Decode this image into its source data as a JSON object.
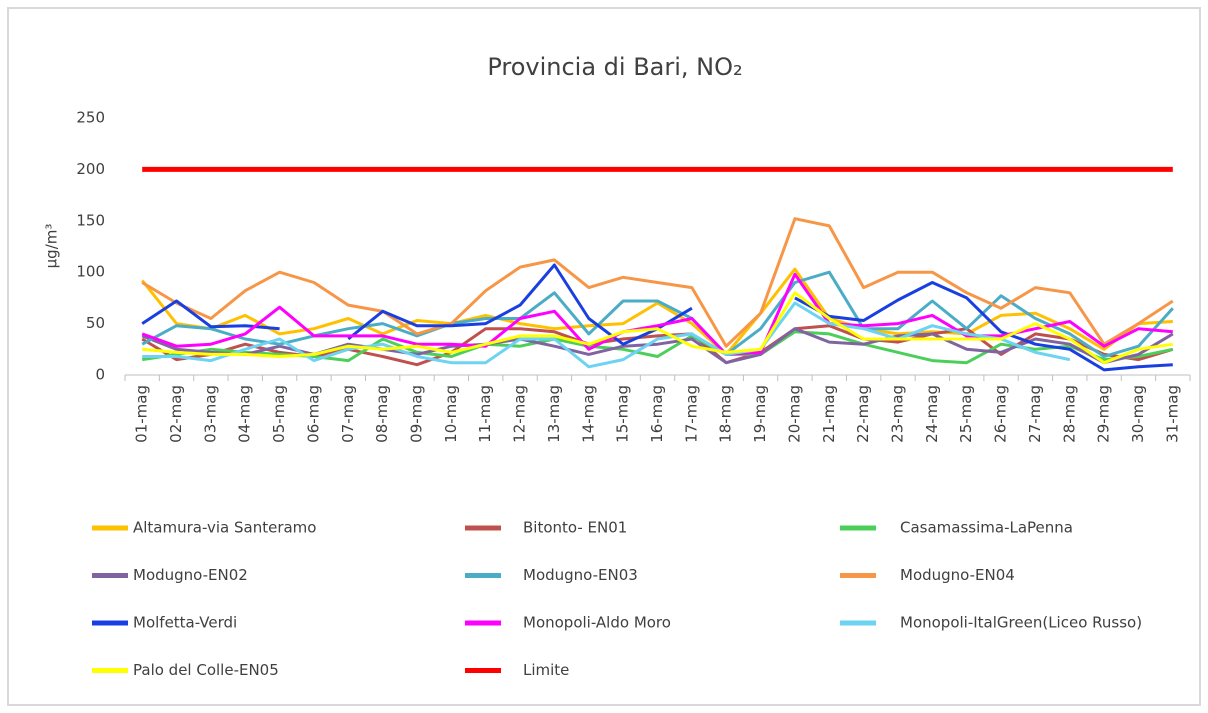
{
  "chart_data": {
    "type": "line",
    "title": "Provincia di Bari, NO₂",
    "y_label": "µg/m³",
    "categories": [
      "01-mag",
      "02-mag",
      "03-mag",
      "04-mag",
      "05-mag",
      "06-mag",
      "07-mag",
      "08-mag",
      "09-mag",
      "10-mag",
      "11-mag",
      "12-mag",
      "13-mag",
      "14-mag",
      "15-mag",
      "16-mag",
      "17-mag",
      "18-mag",
      "19-mag",
      "20-mag",
      "21-mag",
      "22-mag",
      "23-mag",
      "24-mag",
      "25-mag",
      "26-mag",
      "27-mag",
      "28-mag",
      "29-mag",
      "30-mag",
      "31-mag"
    ],
    "ylim": [
      0,
      250
    ],
    "yticks": [
      0,
      50,
      100,
      150,
      200,
      250
    ],
    "grid": false,
    "series": [
      {
        "name": "Altamura-via Santeramo",
        "color": "#ffc000",
        "values": [
          92,
          50,
          45,
          58,
          40,
          45,
          55,
          40,
          53,
          50,
          58,
          50,
          45,
          48,
          50,
          70,
          50,
          20,
          60,
          103,
          55,
          45,
          40,
          42,
          40,
          58,
          60,
          45,
          25,
          50,
          52
        ]
      },
      {
        "name": "Bitonto- EN01",
        "color": "#c0504d",
        "values": [
          35,
          15,
          20,
          30,
          22,
          18,
          25,
          18,
          10,
          22,
          45,
          45,
          42,
          30,
          35,
          38,
          40,
          12,
          22,
          45,
          48,
          35,
          32,
          40,
          45,
          20,
          40,
          35,
          20,
          15,
          25
        ]
      },
      {
        "name": "Casamassima-LaPenna",
        "color": "#4ccf5a",
        "values": [
          15,
          20,
          25,
          22,
          20,
          18,
          14,
          35,
          22,
          18,
          30,
          28,
          35,
          28,
          25,
          18,
          38,
          20,
          20,
          42,
          40,
          30,
          22,
          14,
          12,
          30,
          25,
          28,
          15,
          18,
          25
        ]
      },
      {
        "name": "Modugno-EN02",
        "color": "#8064a2",
        "values": [
          38,
          25,
          22,
          20,
          28,
          20,
          30,
          25,
          20,
          28,
          30,
          35,
          28,
          20,
          28,
          30,
          35,
          12,
          20,
          45,
          32,
          30,
          38,
          40,
          25,
          22,
          35,
          30,
          12,
          20,
          40
        ]
      },
      {
        "name": "Modugno-EN03",
        "color": "#4bacc6",
        "values": [
          30,
          48,
          45,
          35,
          30,
          38,
          45,
          50,
          38,
          50,
          55,
          55,
          80,
          40,
          72,
          72,
          55,
          20,
          45,
          90,
          100,
          45,
          45,
          72,
          45,
          77,
          55,
          40,
          18,
          28,
          65
        ]
      },
      {
        "name": "Modugno-EN04",
        "color": "#f79646",
        "values": [
          90,
          70,
          55,
          82,
          100,
          90,
          68,
          62,
          40,
          50,
          82,
          105,
          112,
          85,
          95,
          90,
          85,
          28,
          60,
          152,
          145,
          85,
          100,
          100,
          80,
          65,
          85,
          80,
          30,
          50,
          72
        ]
      },
      {
        "name": "Molfetta-Verdi",
        "color": "#1a3fe0",
        "values": [
          50,
          72,
          47,
          48,
          45,
          null,
          35,
          62,
          48,
          48,
          50,
          68,
          107,
          55,
          30,
          45,
          65,
          null,
          null,
          75,
          57,
          53,
          73,
          90,
          75,
          42,
          30,
          25,
          5,
          8,
          10
        ]
      },
      {
        "name": "Monopoli-Aldo Moro",
        "color": "#ff00ff",
        "values": [
          40,
          28,
          30,
          40,
          66,
          38,
          38,
          38,
          30,
          30,
          28,
          55,
          62,
          25,
          42,
          48,
          55,
          20,
          22,
          98,
          50,
          48,
          50,
          58,
          38,
          38,
          45,
          52,
          28,
          45,
          42
        ]
      },
      {
        "name": "Monopoli-ItalGreen(Liceo Russo)",
        "color": "#6dd3f2",
        "values": [
          18,
          18,
          14,
          25,
          35,
          14,
          25,
          30,
          18,
          12,
          12,
          35,
          35,
          8,
          15,
          35,
          40,
          20,
          25,
          70,
          50,
          45,
          35,
          48,
          40,
          35,
          22,
          15,
          null,
          null,
          null
        ]
      },
      {
        "name": "Palo del Colle-EN05",
        "color": "#ffff00",
        "values": [
          25,
          22,
          20,
          20,
          18,
          20,
          28,
          25,
          28,
          22,
          30,
          38,
          38,
          30,
          42,
          45,
          28,
          22,
          25,
          80,
          55,
          35,
          35,
          35,
          35,
          35,
          50,
          35,
          12,
          25,
          30
        ]
      },
      {
        "name": "Limite",
        "color": "#ff0000",
        "values": [
          200,
          200,
          200,
          200,
          200,
          200,
          200,
          200,
          200,
          200,
          200,
          200,
          200,
          200,
          200,
          200,
          200,
          200,
          200,
          200,
          200,
          200,
          200,
          200,
          200,
          200,
          200,
          200,
          200,
          200,
          200
        ]
      }
    ]
  }
}
